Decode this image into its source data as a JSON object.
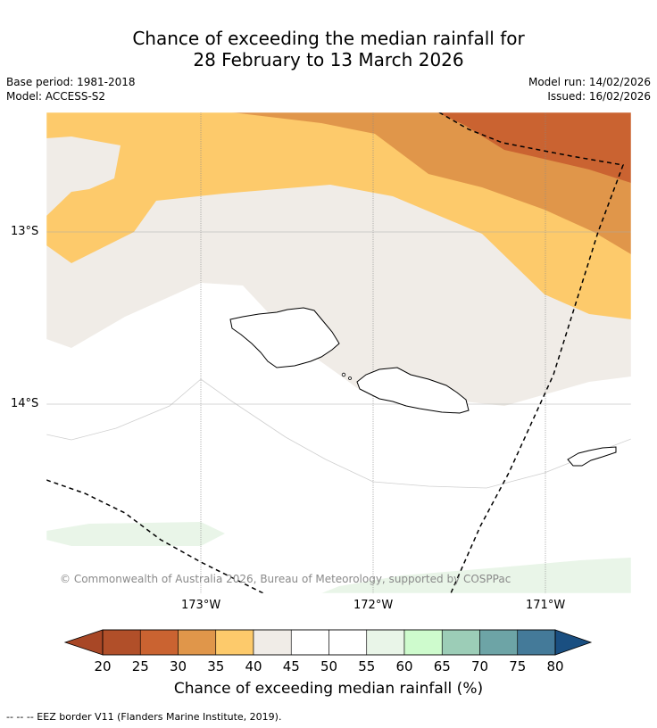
{
  "title": {
    "line1": "Chance of exceeding the median rainfall for",
    "line2": "28 February to 13 March 2026"
  },
  "meta": {
    "base_period": "Base period: 1981-2018",
    "model": "Model: ACCESS-S2",
    "model_run": "Model run: 14/02/2026",
    "issued": "Issued: 16/02/2026"
  },
  "map": {
    "lat_labels": [
      "13°S",
      "14°S"
    ],
    "lon_labels": [
      "173°W",
      "172°W",
      "171°W"
    ],
    "copyright": "© Commonwealth of Australia 2026, Bureau of Meteorology, supported by COSPPac"
  },
  "colorbar": {
    "ticks": [
      "20",
      "25",
      "30",
      "35",
      "40",
      "45",
      "50",
      "55",
      "60",
      "65",
      "70",
      "75",
      "80"
    ],
    "colors": [
      "#a84726",
      "#b14f29",
      "#ca6331",
      "#e0964a",
      "#fdca6b",
      "#f0ece7",
      "#ffffff",
      "#ffffff",
      "#e9f5e8",
      "#cefbcd",
      "#9ccdb7",
      "#6da4a6",
      "#447a99",
      "#1a4f81"
    ],
    "label": "Chance of exceeding median rainfall (%)"
  },
  "footnote": "--  --  -- EEZ border V11 (Flanders Marine Institute, 2019)."
}
